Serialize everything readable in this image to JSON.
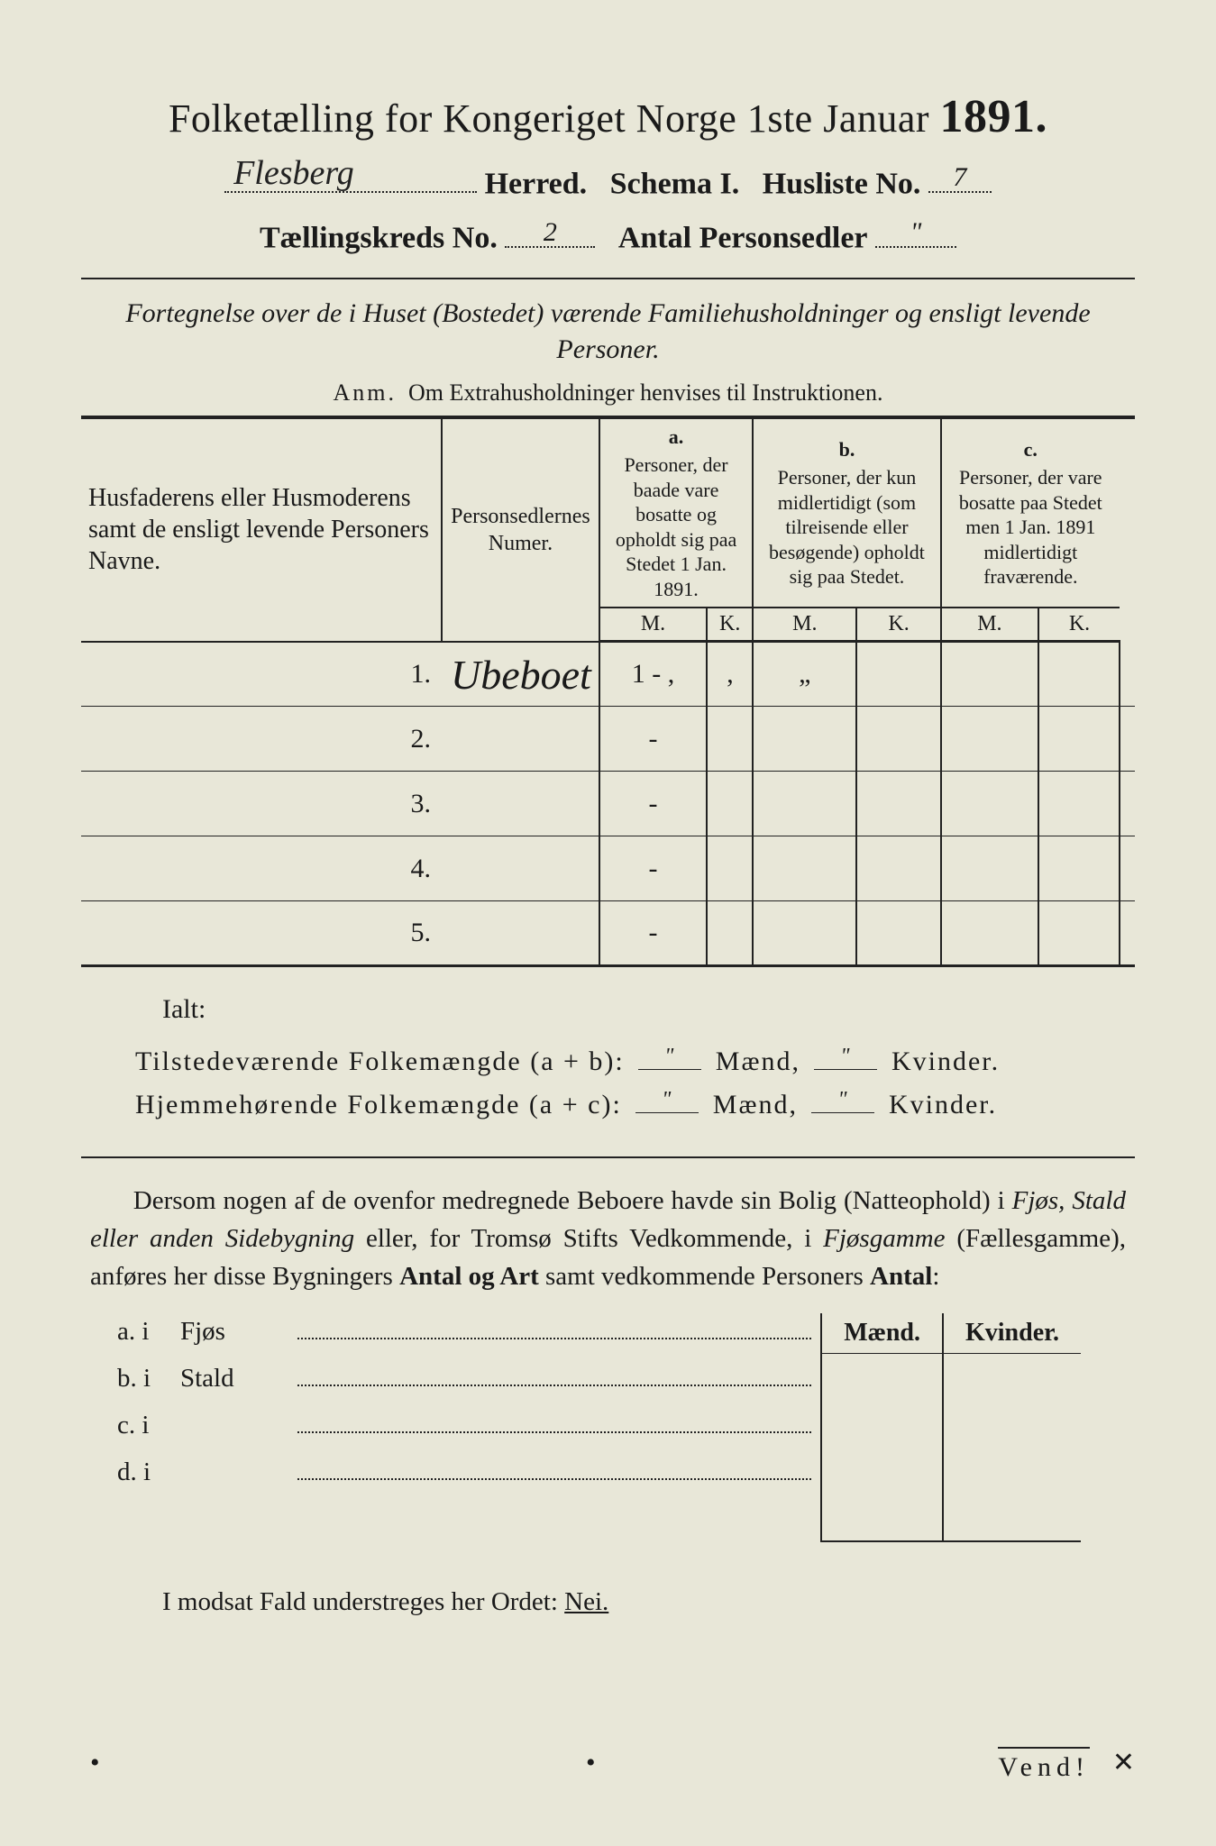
{
  "title": {
    "main": "Folketælling for Kongeriget Norge 1ste Januar ",
    "year": "1891."
  },
  "line2": {
    "herred_value": "Flesberg",
    "herred_label": "Herred.",
    "schema": "Schema I.",
    "husliste_label": "Husliste No.",
    "husliste_value": "7"
  },
  "line3": {
    "kreds_label": "Tællingskreds No.",
    "kreds_value": "2",
    "sedler_label": "Antal Personsedler",
    "sedler_value": "\""
  },
  "subtitle": "Fortegnelse over de i Huset (Bostedet) værende Familiehusholdninger og ensligt levende Personer.",
  "anm": {
    "prefix": "Anm.",
    "text": "Om Extrahusholdninger henvises til Instruktionen."
  },
  "table": {
    "head": {
      "name": "Husfaderens eller Husmoderens samt de ensligt levende Personers Navne.",
      "num": "Personsedlernes Numer.",
      "a_label": "a.",
      "a_text": "Personer, der baade vare bosatte og opholdt sig paa Stedet 1 Jan. 1891.",
      "b_label": "b.",
      "b_text": "Personer, der kun midlertidigt (som tilreisende eller besøgende) opholdt sig paa Stedet.",
      "c_label": "c.",
      "c_text": "Personer, der vare bosatte paa Stedet men 1 Jan. 1891 midlertidigt fraværende.",
      "M": "M.",
      "K": "K."
    },
    "rows": [
      {
        "n": "1.",
        "name": "Ubeboet",
        "num": "1 - ,",
        "aM": "‚",
        "aK": "„",
        "bM": "",
        "bK": "",
        "cM": "",
        "cK": ""
      },
      {
        "n": "2.",
        "name": "",
        "num": "-",
        "aM": "",
        "aK": "",
        "bM": "",
        "bK": "",
        "cM": "",
        "cK": ""
      },
      {
        "n": "3.",
        "name": "",
        "num": "-",
        "aM": "",
        "aK": "",
        "bM": "",
        "bK": "",
        "cM": "",
        "cK": ""
      },
      {
        "n": "4.",
        "name": "",
        "num": "-",
        "aM": "",
        "aK": "",
        "bM": "",
        "bK": "",
        "cM": "",
        "cK": ""
      },
      {
        "n": "5.",
        "name": "",
        "num": "-",
        "aM": "",
        "aK": "",
        "bM": "",
        "bK": "",
        "cM": "",
        "cK": ""
      }
    ]
  },
  "ialt": "Ialt:",
  "sum1": {
    "label": "Tilstedeværende Folkemængde (a + b):",
    "m": "\"",
    "mw": "Mænd,",
    "k": "\"",
    "kw": "Kvinder."
  },
  "sum2": {
    "label": "Hjemmehørende Folkemængde (a + c):",
    "m": "\"",
    "mw": "Mænd,",
    "k": "\"",
    "kw": "Kvinder."
  },
  "para": {
    "t1": "Dersom nogen af de ovenfor medregnede Beboere havde sin Bolig (Natteophold) i ",
    "i1": "Fjøs, Stald eller anden Sidebygning",
    "t2": " eller, for Tromsø Stifts Vedkommende, i ",
    "i2": "Fjøsgamme",
    "t3": " (Fællesgamme), anføres her disse Bygningers ",
    "b1": "Antal og Art",
    "t4": " samt vedkommende Personers ",
    "b2": "Antal",
    "t5": ":"
  },
  "lower": {
    "mk_m": "Mænd.",
    "mk_k": "Kvinder.",
    "rows": [
      {
        "lbl": "a.  i",
        "word": "Fjøs"
      },
      {
        "lbl": "b.  i",
        "word": "Stald"
      },
      {
        "lbl": "c.  i",
        "word": ""
      },
      {
        "lbl": "d.  i",
        "word": ""
      }
    ]
  },
  "nei": {
    "pre": "I modsat Fald understreges her Ordet: ",
    "word": "Nei."
  },
  "vend": "Vend!"
}
